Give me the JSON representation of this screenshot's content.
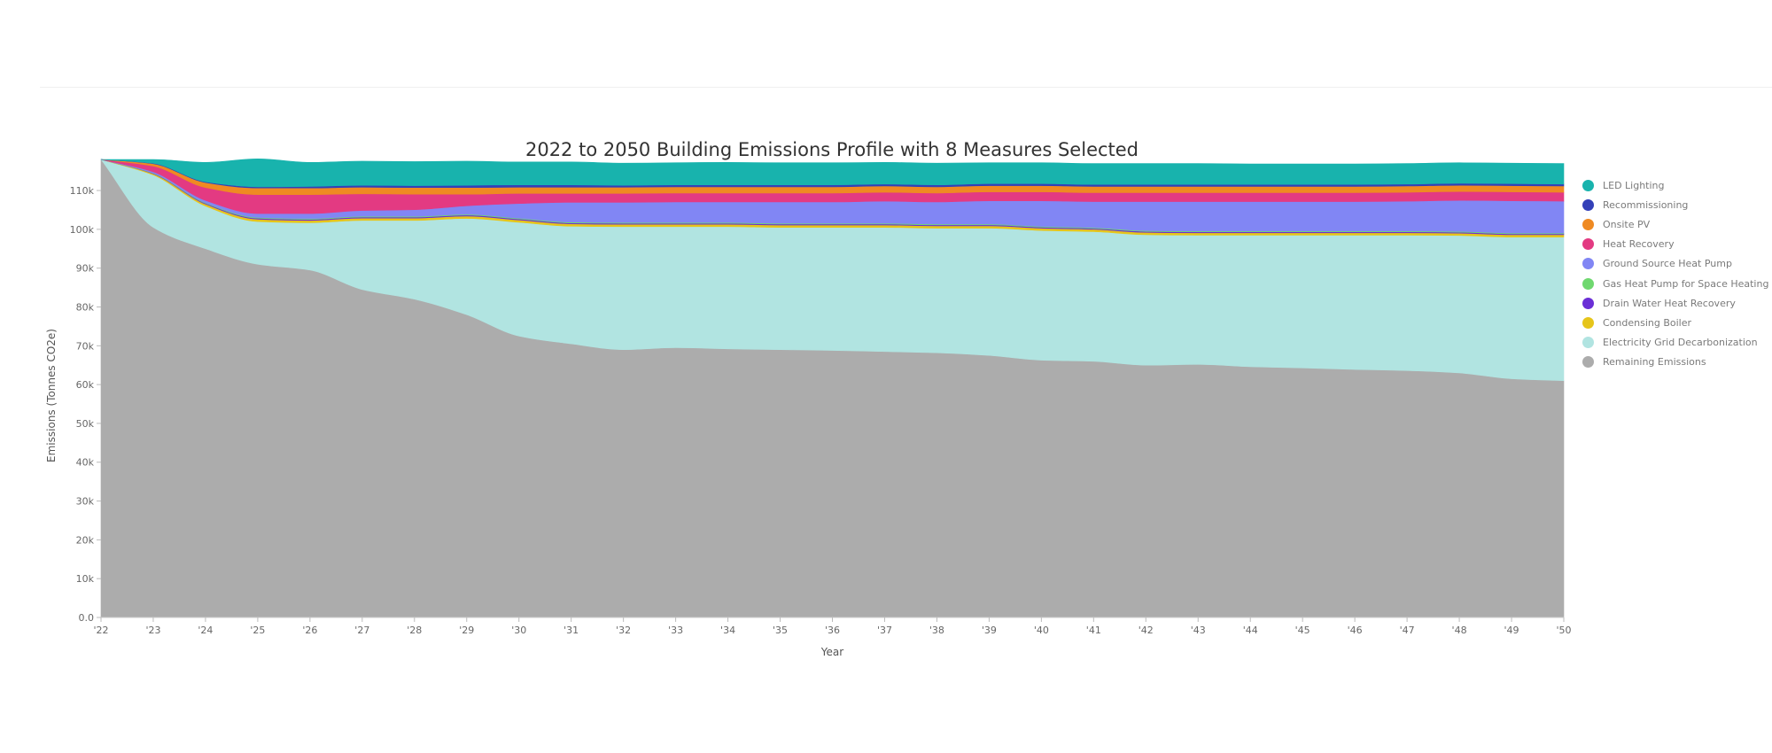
{
  "chart_data": {
    "type": "area",
    "stacked": true,
    "title": "2022 to 2050 Building Emissions Profile with 8 Measures Selected",
    "xlabel": "Year",
    "ylabel": "Emissions (Tonnes CO2e)",
    "ylim": [
      0,
      118000
    ],
    "xlim": [
      2022,
      2050
    ],
    "legend_position": "right",
    "grid": false,
    "x": [
      2022,
      2023,
      2024,
      2025,
      2026,
      2027,
      2028,
      2029,
      2030,
      2031,
      2032,
      2033,
      2034,
      2035,
      2036,
      2037,
      2038,
      2039,
      2040,
      2041,
      2042,
      2043,
      2044,
      2045,
      2046,
      2047,
      2048,
      2049,
      2050
    ],
    "x_tick_labels": [
      "'22",
      "'23",
      "'24",
      "'25",
      "'26",
      "'27",
      "'28",
      "'29",
      "'30",
      "'31",
      "'32",
      "'33",
      "'34",
      "'35",
      "'36",
      "'37",
      "'38",
      "'39",
      "'40",
      "'41",
      "'42",
      "'43",
      "'44",
      "'45",
      "'46",
      "'47",
      "'48",
      "'49",
      "'50"
    ],
    "y_tick_values": [
      0,
      10000,
      20000,
      30000,
      40000,
      50000,
      60000,
      70000,
      80000,
      90000,
      100000,
      110000
    ],
    "y_tick_labels": [
      "0.0",
      "10k",
      "20k",
      "30k",
      "40k",
      "50k",
      "60k",
      "70k",
      "80k",
      "90k",
      "100k",
      "110k"
    ],
    "series": [
      {
        "name": "Remaining Emissions",
        "color": "#acacac",
        "values": [
          118000,
          100500,
          95000,
          91000,
          89500,
          84500,
          82000,
          78000,
          72500,
          70500,
          69000,
          69500,
          69200,
          69000,
          68800,
          68500,
          68200,
          67500,
          66300,
          66000,
          65000,
          65200,
          64600,
          64300,
          63900,
          63600,
          63000,
          61500,
          61000
        ]
      },
      {
        "name": "Electricity Grid Decarbonization",
        "color": "#b1e4e1",
        "values": [
          0,
          13500,
          11000,
          11000,
          12200,
          17800,
          20300,
          24800,
          29300,
          30300,
          31700,
          31200,
          31500,
          31500,
          31700,
          32000,
          32100,
          32800,
          33400,
          33400,
          33600,
          33300,
          33900,
          34200,
          34600,
          34900,
          35400,
          36500,
          37000
        ]
      },
      {
        "name": "Condensing Boiler",
        "color": "#e6c51a",
        "values": [
          0,
          300,
          500,
          600,
          600,
          600,
          600,
          600,
          600,
          600,
          600,
          600,
          600,
          600,
          600,
          600,
          600,
          600,
          600,
          600,
          600,
          600,
          600,
          600,
          600,
          600,
          600,
          600,
          600
        ]
      },
      {
        "name": "Drain Water Heat Recovery",
        "color": "#6b2fd6",
        "values": [
          0,
          100,
          200,
          250,
          250,
          250,
          250,
          250,
          250,
          250,
          250,
          250,
          250,
          250,
          250,
          250,
          250,
          250,
          250,
          250,
          250,
          250,
          250,
          250,
          250,
          250,
          250,
          250,
          250
        ]
      },
      {
        "name": "Gas Heat Pump for Space Heating",
        "color": "#6fd86f",
        "values": [
          0,
          100,
          150,
          200,
          200,
          200,
          200,
          200,
          200,
          200,
          200,
          200,
          200,
          200,
          200,
          200,
          200,
          200,
          200,
          200,
          200,
          200,
          200,
          200,
          200,
          200,
          200,
          200,
          200
        ]
      },
      {
        "name": "Ground Source Heat Pump",
        "color": "#8186f4",
        "values": [
          0,
          300,
          600,
          1000,
          1300,
          1500,
          1700,
          2200,
          3800,
          5100,
          5200,
          5300,
          5300,
          5500,
          5500,
          5700,
          5700,
          6000,
          6600,
          6700,
          7500,
          7600,
          7600,
          7600,
          7600,
          7700,
          8000,
          8300,
          8200
        ]
      },
      {
        "name": "Heat Recovery",
        "color": "#e33a82",
        "values": [
          0,
          1500,
          3300,
          4900,
          4900,
          4300,
          4000,
          3000,
          2600,
          2300,
          2300,
          2300,
          2300,
          2300,
          2300,
          2300,
          2300,
          2300,
          2300,
          2300,
          2300,
          2300,
          2300,
          2300,
          2300,
          2300,
          2300,
          2300,
          2300
        ]
      },
      {
        "name": "Onsite PV",
        "color": "#ef8a22",
        "values": [
          0,
          600,
          1300,
          1700,
          1700,
          1700,
          1700,
          1700,
          1600,
          1600,
          1600,
          1600,
          1600,
          1600,
          1600,
          1600,
          1600,
          1600,
          1600,
          1600,
          1600,
          1600,
          1600,
          1600,
          1600,
          1600,
          1600,
          1600,
          1600
        ]
      },
      {
        "name": "Recommissioning",
        "color": "#3340b8",
        "values": [
          0,
          100,
          200,
          300,
          400,
          500,
          500,
          600,
          600,
          600,
          500,
          500,
          500,
          500,
          500,
          500,
          500,
          500,
          500,
          500,
          500,
          500,
          500,
          500,
          500,
          500,
          500,
          500,
          500
        ]
      },
      {
        "name": "LED Lighting",
        "color": "#18b3ad",
        "values": [
          0,
          1000,
          5000,
          7200,
          6200,
          6200,
          6200,
          6200,
          5900,
          5900,
          5700,
          5700,
          5800,
          5700,
          5700,
          5600,
          5600,
          5400,
          5400,
          5400,
          5400,
          5400,
          5300,
          5300,
          5300,
          5300,
          5300,
          5300,
          5300
        ]
      }
    ],
    "legend_order": [
      "LED Lighting",
      "Recommissioning",
      "Onsite PV",
      "Heat Recovery",
      "Ground Source Heat Pump",
      "Gas Heat Pump for Space Heating",
      "Drain Water Heat Recovery",
      "Condensing Boiler",
      "Electricity Grid Decarbonization",
      "Remaining Emissions"
    ]
  }
}
